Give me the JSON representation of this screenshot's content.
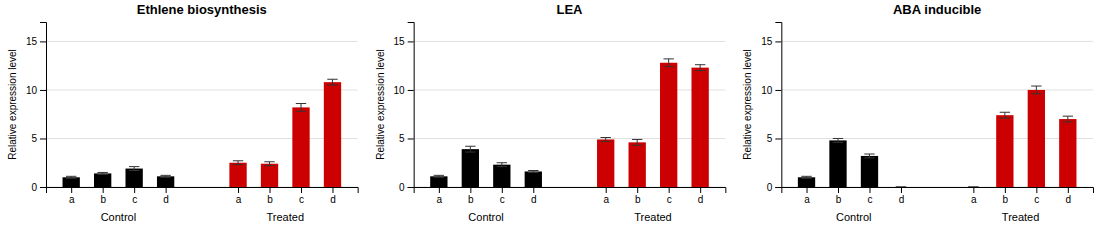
{
  "chart_data": [
    {
      "type": "bar",
      "title": "Ethlene biosynthesis",
      "ylabel": "Relative expression level",
      "categories": [
        "a",
        "b",
        "c",
        "d",
        "a",
        "b",
        "c",
        "d"
      ],
      "values": [
        1.0,
        1.4,
        1.9,
        1.1,
        2.5,
        2.4,
        8.2,
        10.8
      ],
      "errors": [
        0.1,
        0.1,
        0.2,
        0.1,
        0.2,
        0.2,
        0.4,
        0.3
      ],
      "colors": [
        "#000000",
        "#000000",
        "#000000",
        "#000000",
        "#cc0000",
        "#cc0000",
        "#cc0000",
        "#cc0000"
      ],
      "annotations": [
        "Control",
        "Treated"
      ],
      "ylim": [
        0,
        17
      ],
      "yticks": [
        0,
        5,
        10,
        15
      ],
      "grid": true
    },
    {
      "type": "bar",
      "title": "LEA",
      "ylabel": "Relative expression level",
      "categories": [
        "a",
        "b",
        "c",
        "d",
        "a",
        "b",
        "c",
        "d"
      ],
      "values": [
        1.1,
        3.9,
        2.3,
        1.6,
        4.9,
        4.6,
        12.8,
        12.3
      ],
      "errors": [
        0.1,
        0.3,
        0.2,
        0.1,
        0.2,
        0.3,
        0.4,
        0.3
      ],
      "colors": [
        "#000000",
        "#000000",
        "#000000",
        "#000000",
        "#cc0000",
        "#cc0000",
        "#cc0000",
        "#cc0000"
      ],
      "annotations": [
        "Control",
        "Treated"
      ],
      "ylim": [
        0,
        17
      ],
      "yticks": [
        0,
        5,
        10,
        15
      ],
      "grid": true
    },
    {
      "type": "bar",
      "title": "ABA inducible",
      "ylabel": "Relative expression level",
      "categories": [
        "a",
        "b",
        "c",
        "d",
        "a",
        "b",
        "c",
        "d"
      ],
      "values": [
        1.0,
        4.8,
        3.2,
        0.0,
        0.0,
        7.4,
        10.0,
        7.0
      ],
      "errors": [
        0.1,
        0.2,
        0.2,
        0.0,
        0.0,
        0.3,
        0.4,
        0.3
      ],
      "colors": [
        "#000000",
        "#000000",
        "#000000",
        "#000000",
        "#cc0000",
        "#cc0000",
        "#cc0000",
        "#cc0000"
      ],
      "annotations": [
        "Control",
        "Treated"
      ],
      "ylim": [
        0,
        17
      ],
      "yticks": [
        0,
        5,
        10,
        15
      ],
      "grid": true
    }
  ]
}
